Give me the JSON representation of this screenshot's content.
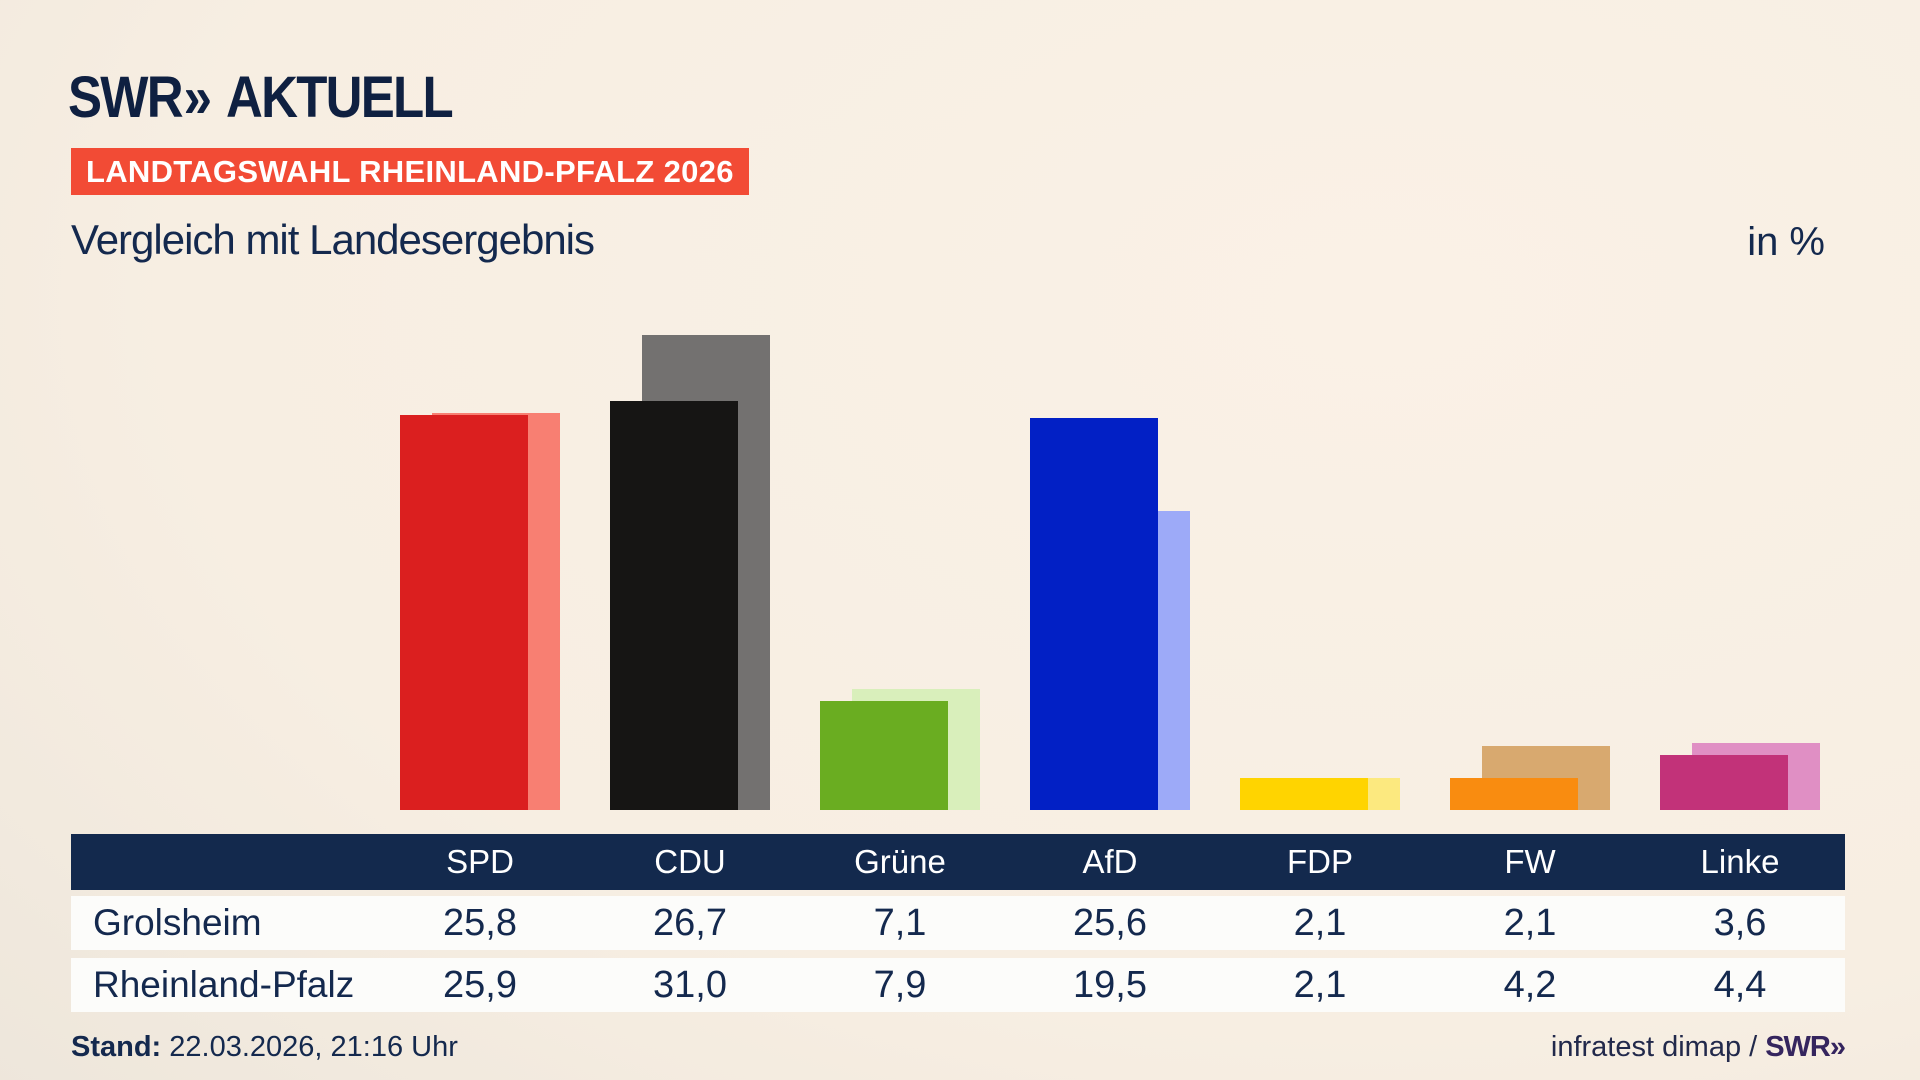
{
  "brand": {
    "swr": "SWR",
    "chevrons": "»",
    "aktuell": "AKTUELL"
  },
  "header": {
    "badge": "LANDTAGSWAHL RHEINLAND-PFALZ 2026",
    "title": "Vergleich mit Landesergebnis",
    "unit": "in %"
  },
  "chart_data": {
    "type": "bar",
    "categories": [
      "SPD",
      "CDU",
      "Grüne",
      "AfD",
      "FDP",
      "FW",
      "Linke"
    ],
    "series": [
      {
        "name": "Grolsheim",
        "values": [
          25.8,
          26.7,
          7.1,
          25.6,
          2.1,
          2.1,
          3.6
        ]
      },
      {
        "name": "Rheinland-Pfalz",
        "values": [
          25.9,
          31.0,
          7.9,
          19.5,
          2.1,
          4.2,
          4.4
        ]
      }
    ],
    "title": "Vergleich mit Landesergebnis",
    "unit": "in %",
    "ylim": [
      0,
      35
    ],
    "grid": false,
    "legend": "none (series identified via table rows)",
    "party_colors": [
      {
        "party": "SPD",
        "front": "#db1f1f",
        "back": "#f87f72"
      },
      {
        "party": "CDU",
        "front": "#161514",
        "back": "#737170"
      },
      {
        "party": "Grüne",
        "front": "#6aad21",
        "back": "#d9efbb"
      },
      {
        "party": "AfD",
        "front": "#0220c5",
        "back": "#9daaf8"
      },
      {
        "party": "FDP",
        "front": "#ffd400",
        "back": "#fce97f"
      },
      {
        "party": "FW",
        "front": "#f98c10",
        "back": "#d8a96f"
      },
      {
        "party": "Linke",
        "front": "#c23279",
        "back": "#e08fc4"
      }
    ]
  },
  "table": {
    "columns": [
      "SPD",
      "CDU",
      "Grüne",
      "AfD",
      "FDP",
      "FW",
      "Linke"
    ],
    "rows": [
      {
        "label": "Grolsheim",
        "cells": [
          "25,8",
          "26,7",
          "7,1",
          "25,6",
          "2,1",
          "2,1",
          "3,6"
        ]
      },
      {
        "label": "Rheinland-Pfalz",
        "cells": [
          "25,9",
          "31,0",
          "7,9",
          "19,5",
          "2,1",
          "4,2",
          "4,4"
        ]
      }
    ]
  },
  "footer": {
    "stand_label": "Stand:",
    "stand_value": "22.03.2026, 21:16 Uhr",
    "source": "infratest dimap /",
    "source_logo": "SWR»"
  },
  "colors": {
    "background_cream": "#f7eee2",
    "background_corner_gray": "#d2cfc9",
    "navy": "#13294d",
    "badge_red": "#f24b35",
    "table_row_bg": "#fcfcfa",
    "logo_navy": "#0f2041",
    "source_logo_purple": "#35255e"
  }
}
